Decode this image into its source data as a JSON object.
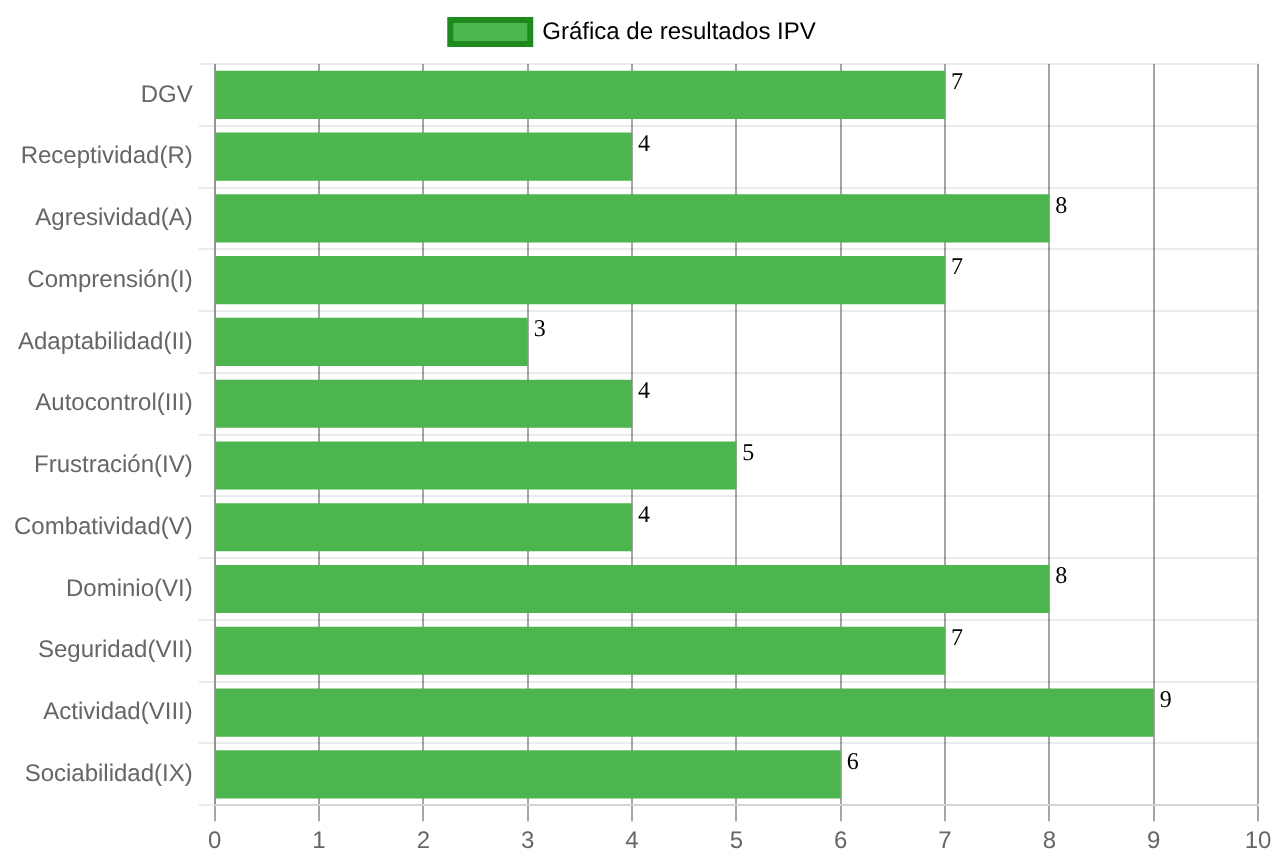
{
  "chart_data": {
    "type": "bar",
    "orientation": "horizontal",
    "categories": [
      "DGV",
      "Receptividad(R)",
      "Agresividad(A)",
      "Comprensión(I)",
      "Adaptabilidad(II)",
      "Autocontrol(III)",
      "Frustración(IV)",
      "Combatividad(V)",
      "Dominio(VI)",
      "Seguridad(VII)",
      "Actividad(VIII)",
      "Sociabilidad(IX)"
    ],
    "series": [
      {
        "name": "Gráfica de resultados IPV",
        "color": "#4db54d",
        "values": [
          7,
          4,
          8,
          7,
          3,
          4,
          5,
          4,
          8,
          7,
          9,
          6
        ]
      }
    ],
    "xlim": [
      0,
      10
    ],
    "xticks": [
      0,
      1,
      2,
      3,
      4,
      5,
      6,
      7,
      8,
      9,
      10
    ],
    "grid": true,
    "legend": "top",
    "data_labels": true
  }
}
